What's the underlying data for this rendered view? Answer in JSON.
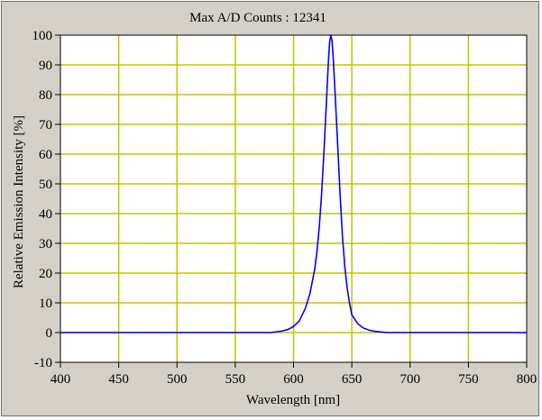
{
  "chart_data": {
    "type": "line",
    "title": "Max A/D Counts : 12341",
    "xlabel": "Wavelength [nm]",
    "ylabel": "Relative Emission Intensity [%]",
    "xlim": [
      400,
      800
    ],
    "ylim": [
      -10,
      100
    ],
    "xticks": [
      400,
      450,
      500,
      550,
      600,
      650,
      700,
      750,
      800
    ],
    "yticks": [
      -10,
      0,
      10,
      20,
      30,
      40,
      50,
      60,
      70,
      80,
      90,
      100
    ],
    "grid": true,
    "colors": {
      "line": "#0000ff",
      "grid": "#c8c000",
      "plot_bg": "#ffffff",
      "frame_bg": "#d4d0c8"
    },
    "series": [
      {
        "x": [
          400,
          500,
          540,
          560,
          580,
          590,
          595,
          600,
          605,
          610,
          614,
          618,
          620,
          622,
          624,
          626,
          628,
          630,
          631,
          632,
          633,
          634,
          636,
          638,
          640,
          642,
          644,
          646,
          648,
          650,
          655,
          660,
          665,
          670,
          675,
          680,
          700,
          750,
          800
        ],
        "y": [
          0,
          0,
          0,
          0,
          0,
          0.5,
          1,
          2,
          4,
          8,
          13,
          21,
          27,
          35,
          46,
          60,
          76,
          92,
          98,
          100,
          98,
          93,
          78,
          62,
          46,
          32,
          22,
          15,
          10,
          6,
          3,
          1.5,
          0.8,
          0.4,
          0.2,
          0,
          0,
          0,
          0
        ]
      }
    ]
  }
}
